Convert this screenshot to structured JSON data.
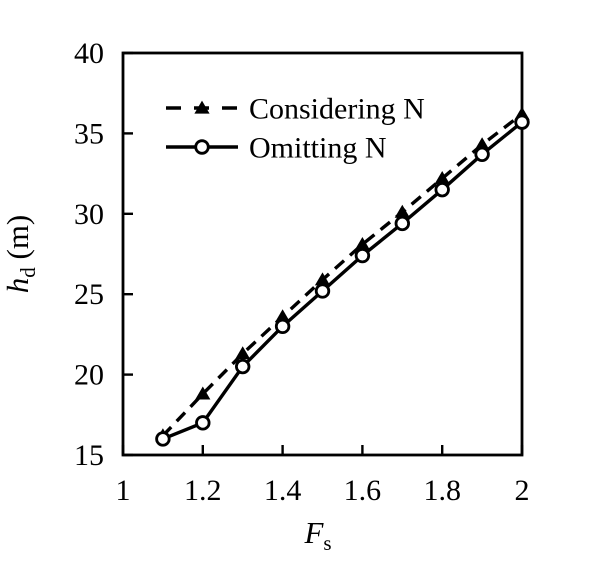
{
  "chart_data": {
    "type": "line",
    "title": "",
    "xlabel": {
      "base": "F",
      "sub": "s"
    },
    "ylabel": {
      "base": "h",
      "sub": "d",
      "suffix": " (m)"
    },
    "xlim": [
      1,
      2
    ],
    "ylim": [
      15,
      40
    ],
    "grid": false,
    "x_ticks": {
      "values": [
        1,
        1.2,
        1.4,
        1.6,
        1.8,
        2
      ],
      "labels": [
        "1",
        "1.2",
        "1.4",
        "1.6",
        "1.8",
        "2"
      ]
    },
    "y_ticks": {
      "values": [
        15,
        20,
        25,
        30,
        35,
        40
      ],
      "labels": [
        "15",
        "20",
        "25",
        "30",
        "35",
        "40"
      ]
    },
    "x": [
      1.1,
      1.2,
      1.3,
      1.4,
      1.5,
      1.6,
      1.7,
      1.8,
      1.9,
      2.0
    ],
    "series": [
      {
        "name": "Considering N",
        "values": [
          16.2,
          18.8,
          21.3,
          23.6,
          25.9,
          28.1,
          30.1,
          32.2,
          34.3,
          36.2
        ],
        "line_style": "dashed",
        "marker": "filled-triangle",
        "color": "#000000"
      },
      {
        "name": "Omitting N",
        "values": [
          16.0,
          17.0,
          20.5,
          23.0,
          25.2,
          27.4,
          29.4,
          31.5,
          33.7,
          35.7
        ],
        "line_style": "solid",
        "marker": "open-circle",
        "color": "#000000"
      }
    ],
    "legend": {
      "position": "upper-left-inside"
    },
    "colors": {
      "background": "#ffffff",
      "axis": "#000000",
      "text": "#000000"
    }
  }
}
